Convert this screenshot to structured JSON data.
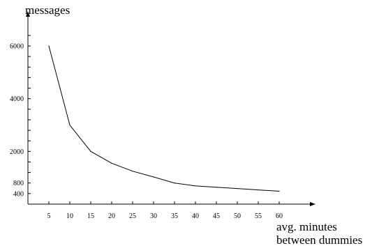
{
  "chart_data": {
    "type": "line",
    "title": "",
    "xlabel_lines": [
      "avg. minutes",
      "between dummies"
    ],
    "ylabel": "messages",
    "x": [
      5,
      10,
      15,
      20,
      25,
      30,
      35,
      40,
      45,
      50,
      55,
      60
    ],
    "series": [
      {
        "values": [
          6000,
          3000,
          2000,
          1550,
          1250,
          1030,
          800,
          690,
          640,
          590,
          540,
          490
        ]
      }
    ],
    "xticks": [
      5,
      10,
      15,
      20,
      25,
      30,
      35,
      40,
      45,
      50,
      55,
      60
    ],
    "yticks_labeled": [
      400,
      800,
      2000,
      4000,
      6000
    ],
    "yticks_minor_step": 400,
    "xlim": [
      0,
      65
    ],
    "ylim": [
      0,
      7000
    ],
    "grid": false,
    "line_color": "#000000"
  }
}
